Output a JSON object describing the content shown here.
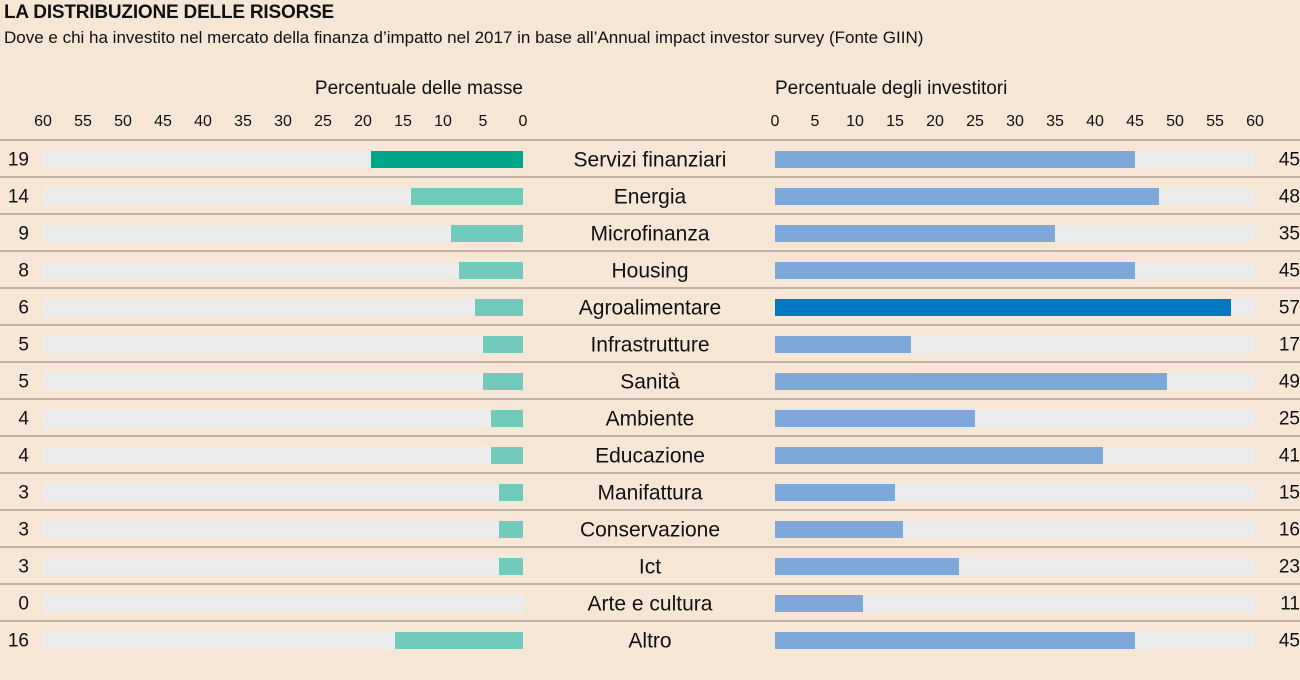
{
  "title": "LA DISTRIBUZIONE DELLE RISORSE",
  "subtitle": "Dove e chi ha investito nel mercato della finanza d’impatto nel 2017 in base all’Annual impact investor survey (Fonte GIIN)",
  "colors": {
    "background": "#f5e6d6",
    "track": "#ebebeb",
    "left_bar": "#72cabd",
    "left_highlight": "#00a68a",
    "right_bar": "#7fa8da",
    "right_highlight": "#0079c2",
    "divider": "#8a7f74"
  },
  "chart_data": {
    "type": "bar",
    "categories": [
      "Servizi finanziari",
      "Energia",
      "Microfinanza",
      "Housing",
      "Agroalimentare",
      "Infrastrutture",
      "Sanità",
      "Ambiente",
      "Educazione",
      "Manifattura",
      "Conservazione",
      "Ict",
      "Arte e cultura",
      "Altro"
    ],
    "series": [
      {
        "name": "Percentuale delle masse",
        "values": [
          19,
          14,
          9,
          8,
          6,
          5,
          5,
          4,
          4,
          3,
          3,
          3,
          0,
          16
        ],
        "xlim": [
          0,
          60
        ],
        "ticks": [
          60,
          55,
          50,
          45,
          40,
          35,
          30,
          25,
          20,
          15,
          10,
          5,
          0
        ],
        "highlight_index": 0
      },
      {
        "name": "Percentuale degli investitori",
        "values": [
          45,
          48,
          35,
          45,
          57,
          17,
          49,
          25,
          41,
          15,
          16,
          23,
          11,
          45
        ],
        "xlim": [
          0,
          60
        ],
        "ticks": [
          0,
          5,
          10,
          15,
          20,
          25,
          30,
          35,
          40,
          45,
          50,
          55,
          60
        ],
        "highlight_index": 4
      }
    ]
  }
}
